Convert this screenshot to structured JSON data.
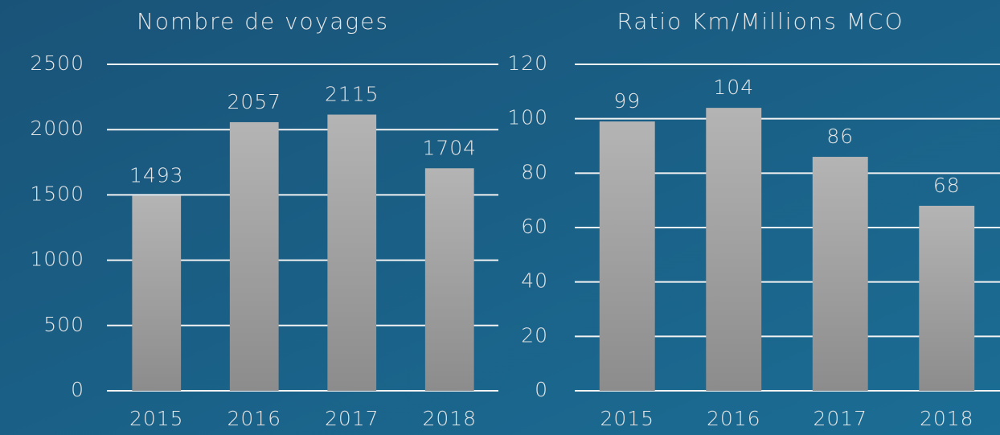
{
  "chart_data": [
    {
      "type": "bar",
      "title": "Nombre de voyages",
      "categories": [
        "2015",
        "2016",
        "2017",
        "2018"
      ],
      "values": [
        1493,
        2057,
        2115,
        1704
      ],
      "color": "#a6a6a6",
      "ylim": [
        0,
        2500
      ],
      "yticks": [
        0,
        500,
        1000,
        1500,
        2000,
        2500
      ],
      "grid": true
    },
    {
      "type": "bar",
      "title": "Ratio Km/Millions MCO",
      "categories": [
        "2015",
        "2016",
        "2017",
        "2018"
      ],
      "values": [
        99,
        104,
        86,
        68
      ],
      "color": "#a6a6a6",
      "ylim": [
        0,
        120
      ],
      "yticks": [
        0,
        20,
        40,
        60,
        80,
        100,
        120
      ],
      "grid": true
    }
  ]
}
